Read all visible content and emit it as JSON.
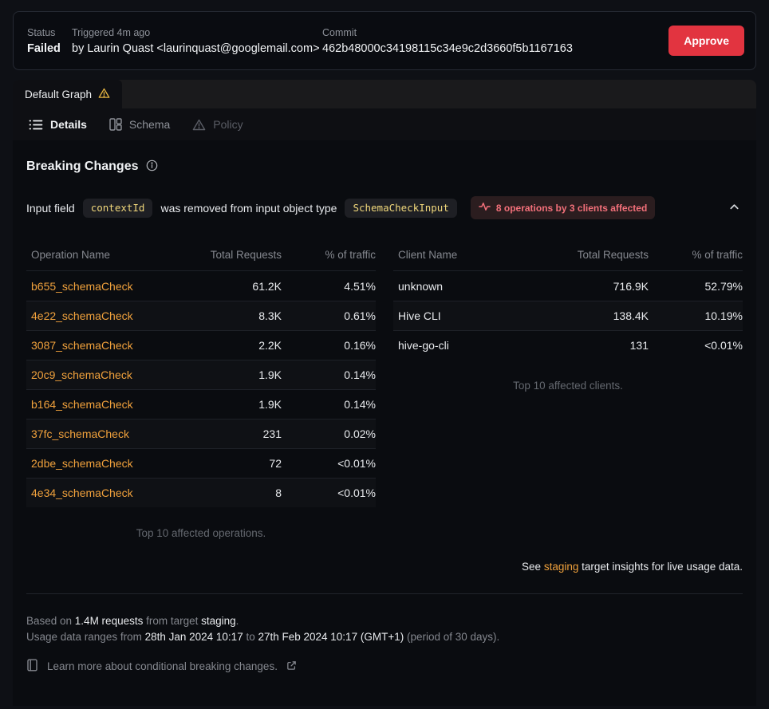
{
  "colors": {
    "accent_orange": "#f0a13c",
    "danger_red": "#e23440",
    "warning_yellow": "#e3b341",
    "code_text_yellow": "#f0d77b"
  },
  "status_bar": {
    "status_label": "Status",
    "status_value": "Failed",
    "triggered_label": "Triggered 4m ago",
    "triggered_value": "by Laurin Quast <laurinquast@googlemail.com>",
    "commit_label": "Commit",
    "commit_value": "462b48000c34198115c34e9c2d3660f5b1167163",
    "approve_label": "Approve"
  },
  "graph_tab": {
    "label": "Default Graph"
  },
  "toolbar": {
    "details_label": "Details",
    "schema_label": "Schema",
    "policy_label": "Policy"
  },
  "breaking_changes": {
    "title": "Breaking Changes",
    "change": {
      "prefix": "Input field",
      "field_code": "contextId",
      "middle": "was removed from input object type",
      "type_code": "SchemaCheckInput",
      "affected_badge": "8 operations by 3 clients affected"
    },
    "operations_table": {
      "headers": [
        "Operation Name",
        "Total Requests",
        "% of traffic"
      ],
      "rows": [
        [
          "b655_schemaCheck",
          "61.2K",
          "4.51%"
        ],
        [
          "4e22_schemaCheck",
          "8.3K",
          "0.61%"
        ],
        [
          "3087_schemaCheck",
          "2.2K",
          "0.16%"
        ],
        [
          "20c9_schemaCheck",
          "1.9K",
          "0.14%"
        ],
        [
          "b164_schemaCheck",
          "1.9K",
          "0.14%"
        ],
        [
          "37fc_schemaCheck",
          "231",
          "0.02%"
        ],
        [
          "2dbe_schemaCheck",
          "72",
          "<0.01%"
        ],
        [
          "4e34_schemaCheck",
          "8",
          "<0.01%"
        ]
      ],
      "footnote": "Top 10 affected operations."
    },
    "clients_table": {
      "headers": [
        "Client Name",
        "Total Requests",
        "% of traffic"
      ],
      "rows": [
        [
          "unknown",
          "716.9K",
          "52.79%"
        ],
        [
          "Hive CLI",
          "138.4K",
          "10.19%"
        ],
        [
          "hive-go-cli",
          "131",
          "<0.01%"
        ]
      ],
      "footnote": "Top 10 affected clients."
    },
    "insights_note": [
      {
        "text": "See ",
        "style": "normal"
      },
      {
        "text": "staging",
        "style": "link"
      },
      {
        "text": " target insights for live usage data.",
        "style": "normal"
      }
    ]
  },
  "footer": {
    "line1": [
      {
        "text": "Based on ",
        "style": "muted"
      },
      {
        "text": "1.4M requests",
        "style": "strong"
      },
      {
        "text": " from target ",
        "style": "muted"
      },
      {
        "text": "staging",
        "style": "strong"
      },
      {
        "text": ".",
        "style": "muted"
      }
    ],
    "line2": [
      {
        "text": "Usage data ranges from ",
        "style": "muted"
      },
      {
        "text": "28th Jan 2024 10:17",
        "style": "strong"
      },
      {
        "text": " to ",
        "style": "muted"
      },
      {
        "text": "27th Feb 2024 10:17 (GMT+1)",
        "style": "strong"
      },
      {
        "text": " (period of 30 days).",
        "style": "muted"
      }
    ],
    "learn_more": "Learn more about conditional breaking changes."
  }
}
